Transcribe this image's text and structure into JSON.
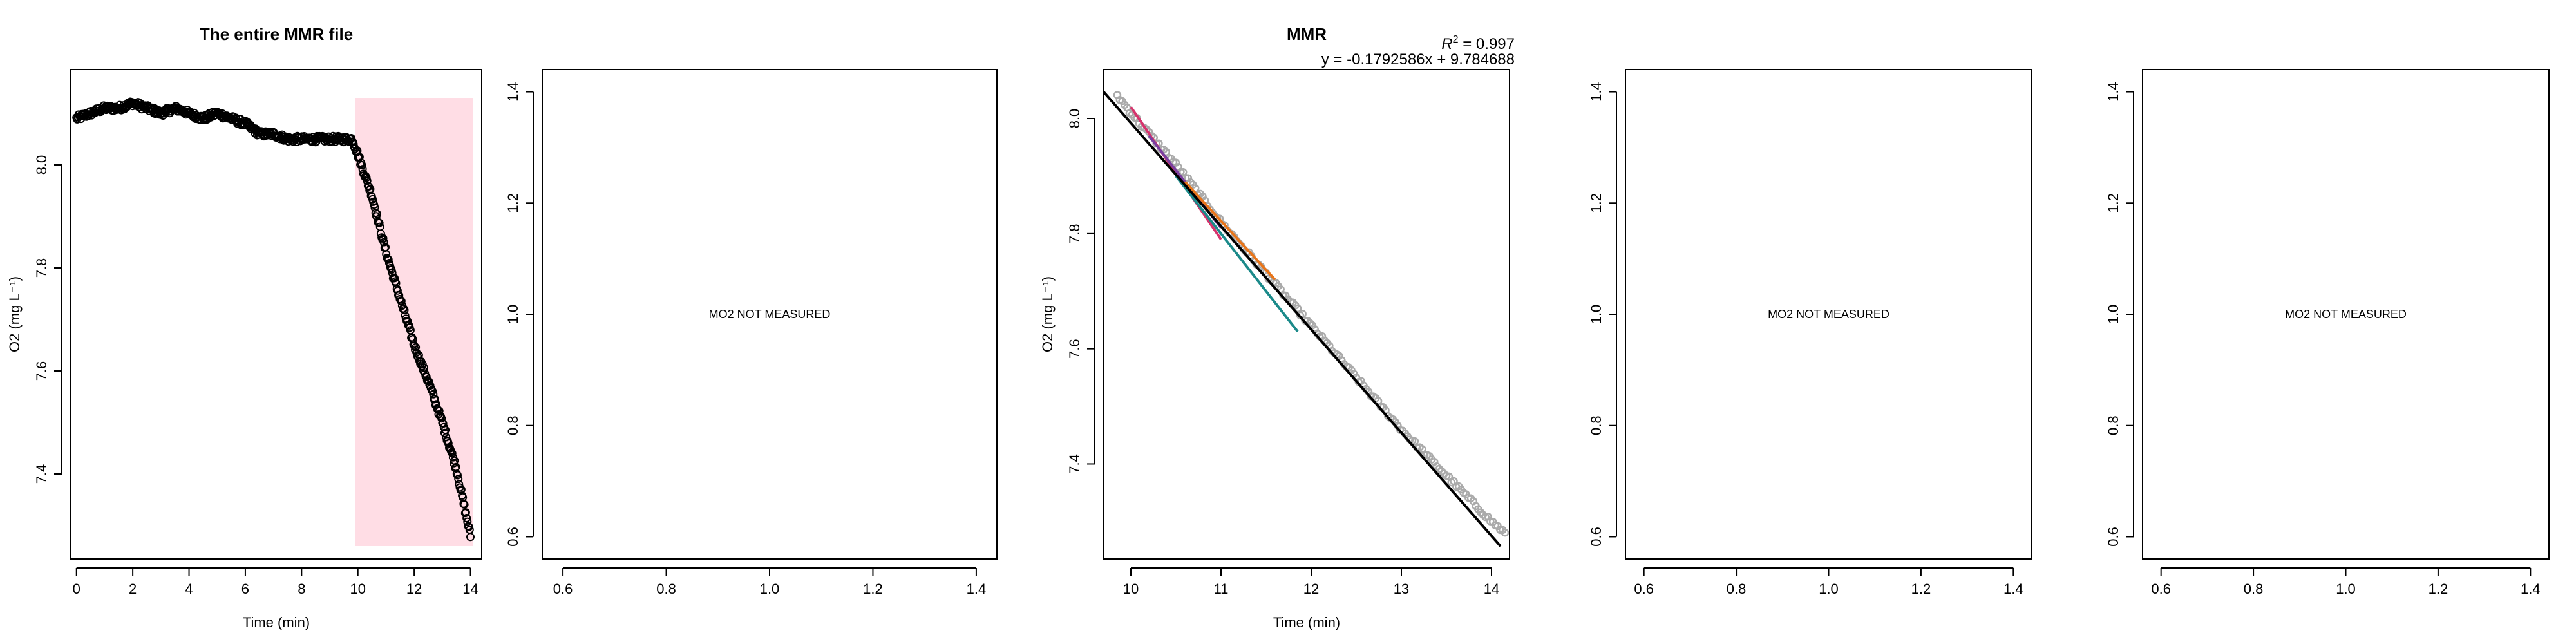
{
  "chart_data": [
    {
      "type": "scatter",
      "title": "The entire MMR file",
      "xlabel": "Time (min)",
      "ylabel": "O2 (mg L⁻¹)",
      "xlim": [
        -0.2,
        14.4
      ],
      "ylim": [
        7.235,
        8.185
      ],
      "x_ticks": [
        "0",
        "2",
        "4",
        "6",
        "8",
        "10",
        "12",
        "14"
      ],
      "y_ticks": [
        "7.4",
        "7.6",
        "7.8",
        "8.0"
      ],
      "highlight": {
        "x": [
          9.9,
          14.1
        ],
        "y": [
          7.26,
          8.13
        ],
        "color": "#ffdde5"
      },
      "anchors": [
        [
          0.0,
          8.09
        ],
        [
          0.5,
          8.1
        ],
        [
          1.0,
          8.11
        ],
        [
          1.5,
          8.11
        ],
        [
          2.0,
          8.12
        ],
        [
          2.5,
          8.11
        ],
        [
          3.0,
          8.1
        ],
        [
          3.5,
          8.11
        ],
        [
          4.0,
          8.1
        ],
        [
          4.5,
          8.09
        ],
        [
          5.0,
          8.1
        ],
        [
          5.5,
          8.09
        ],
        [
          6.0,
          8.08
        ],
        [
          6.5,
          8.06
        ],
        [
          7.0,
          8.06
        ],
        [
          7.5,
          8.05
        ],
        [
          8.0,
          8.05
        ],
        [
          8.5,
          8.05
        ],
        [
          9.0,
          8.05
        ],
        [
          9.5,
          8.05
        ],
        [
          9.8,
          8.05
        ],
        [
          10.0,
          8.02
        ],
        [
          10.5,
          7.94
        ],
        [
          11.0,
          7.83
        ],
        [
          11.5,
          7.74
        ],
        [
          12.0,
          7.65
        ],
        [
          12.5,
          7.58
        ],
        [
          13.0,
          7.5
        ],
        [
          13.5,
          7.41
        ],
        [
          14.0,
          7.28
        ]
      ],
      "point_color": "#000000"
    },
    {
      "type": "scatter",
      "title": "",
      "xlabel": "",
      "ylabel": "",
      "xlim": [
        0.56,
        1.44
      ],
      "ylim": [
        0.56,
        1.44
      ],
      "x_ticks": [
        "0.6",
        "0.8",
        "1.0",
        "1.2",
        "1.4"
      ],
      "y_ticks": [
        "0.6",
        "0.8",
        "1.0",
        "1.2",
        "1.4"
      ],
      "message": "MO2 NOT MEASURED"
    },
    {
      "type": "scatter",
      "title": "MMR",
      "r2_label": "R",
      "r2_value": " = 0.997",
      "equation": "y = -0.1792586x + 9.784688",
      "xlabel": "Time (min)",
      "ylabel": "O2 (mg L⁻¹)",
      "xlim": [
        9.7,
        14.2
      ],
      "ylim": [
        7.235,
        8.085
      ],
      "x_ticks": [
        "10",
        "11",
        "12",
        "13",
        "14"
      ],
      "y_ticks": [
        "7.4",
        "7.6",
        "7.8",
        "8.0"
      ],
      "points_color": "#aaaaaa",
      "anchors": [
        [
          9.85,
          8.04
        ],
        [
          10.0,
          8.01
        ],
        [
          10.5,
          7.92
        ],
        [
          11.0,
          7.82
        ],
        [
          11.5,
          7.73
        ],
        [
          12.0,
          7.64
        ],
        [
          12.5,
          7.55
        ],
        [
          13.0,
          7.46
        ],
        [
          13.5,
          7.38
        ],
        [
          14.0,
          7.3
        ],
        [
          14.15,
          7.28
        ]
      ],
      "fit": {
        "slope": -0.1792586,
        "intercept": 9.784688,
        "x": [
          9.7,
          14.1
        ],
        "color": "#000000"
      },
      "segments": [
        {
          "color": "#d6336c",
          "x": [
            10.0,
            11.0
          ],
          "y": [
            8.02,
            7.79
          ]
        },
        {
          "color": "#7b3fa0",
          "x": [
            10.2,
            11.0
          ],
          "y": [
            7.97,
            7.81
          ]
        },
        {
          "color": "#e8751a",
          "x": [
            10.6,
            11.6
          ],
          "y": [
            7.89,
            7.72
          ]
        },
        {
          "color": "#1b8a8a",
          "x": [
            10.5,
            11.85
          ],
          "y": [
            7.9,
            7.63
          ]
        }
      ]
    },
    {
      "type": "scatter",
      "title": "",
      "xlabel": "",
      "ylabel": "",
      "xlim": [
        0.56,
        1.44
      ],
      "ylim": [
        0.56,
        1.44
      ],
      "x_ticks": [
        "0.6",
        "0.8",
        "1.0",
        "1.2",
        "1.4"
      ],
      "y_ticks": [
        "0.6",
        "0.8",
        "1.0",
        "1.2",
        "1.4"
      ],
      "message": "MO2 NOT MEASURED"
    },
    {
      "type": "scatter",
      "title": "",
      "xlabel": "",
      "ylabel": "",
      "xlim": [
        0.56,
        1.44
      ],
      "ylim": [
        0.56,
        1.44
      ],
      "x_ticks": [
        "0.6",
        "0.8",
        "1.0",
        "1.2",
        "1.4"
      ],
      "y_ticks": [
        "0.6",
        "0.8",
        "1.0",
        "1.2",
        "1.4"
      ],
      "message": "MO2 NOT MEASURED"
    }
  ]
}
